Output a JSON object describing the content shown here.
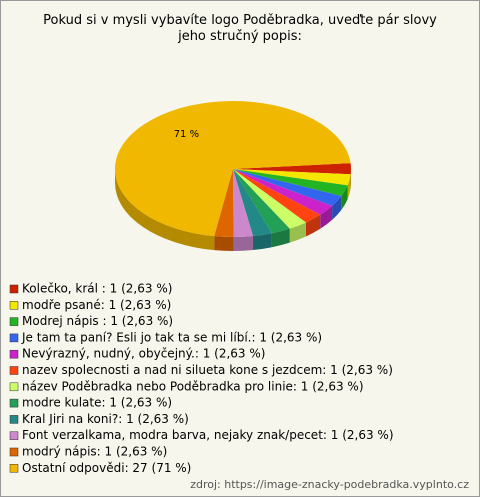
{
  "chart_data": {
    "type": "pie",
    "title": "Pokud si v mysli vybavíte logo Poděbradka, uveďte pár slovy jeho stručný popis:",
    "categories": [
      "Kolečko, král : 1 (2,63 %)",
      "modře psané: 1 (2,63 %)",
      "Modrej nápis : 1 (2,63 %)",
      "Je tam ta paní? Esli jo tak ta se mi líbí.: 1 (2,63 %)",
      "Nevýrazný, nudný, obyčejný.: 1 (2,63 %)",
      "nazev spolecnosti a nad ni silueta kone s jezdcem: 1 (2,63 %)",
      "název Poděbradka nebo Poděbradka pro linie: 1 (2,63 %)",
      "modre kulate: 1 (2,63 %)",
      "Kral Jiri na koni?: 1 (2,63 %)",
      "Font verzalkama, modra barva, nejaky znak/pecet: 1 (2,63 %)",
      "modrý nápis: 1 (2,63 %)",
      "Ostatní odpovědi: 27 (71 %)"
    ],
    "values": [
      2.63,
      2.63,
      2.63,
      2.63,
      2.63,
      2.63,
      2.63,
      2.63,
      2.63,
      2.63,
      2.63,
      71.05
    ],
    "value_labels": [
      null,
      null,
      null,
      null,
      null,
      null,
      null,
      null,
      null,
      null,
      null,
      "71 %"
    ],
    "colors": [
      "#cc2200",
      "#f5e600",
      "#22b422",
      "#3366ee",
      "#cc22cc",
      "#ff4411",
      "#ccff66",
      "#22a055",
      "#228888",
      "#cc88cc",
      "#dd6600",
      "#f0b800"
    ],
    "source": "zdroj: https://image-znacky-podebradka.vyplnto.cz"
  }
}
